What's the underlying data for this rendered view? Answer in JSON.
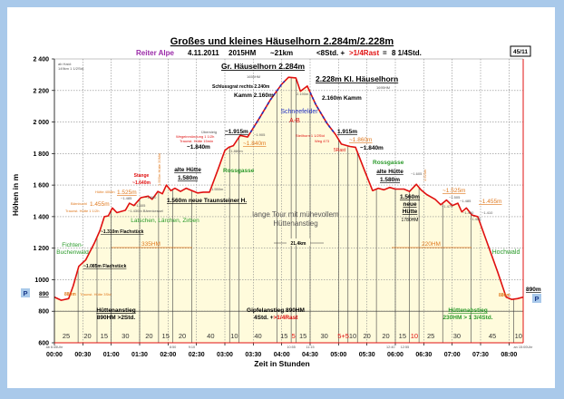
{
  "chart_data": {
    "type": "area",
    "title": "Großes und kleines Häuselhorn 2.284m/2.228m",
    "subtitle": {
      "region": "Reiter Alpe",
      "date": "4.11.2011",
      "hm": "2015HM",
      "distance": "~21km",
      "time": "<8Std. +",
      "rest": ">1/4Rast",
      "eq": "=",
      "total": "8 1/4Std."
    },
    "badge": "45/11",
    "xlabel": "Zeit in Stunden",
    "ylabel": "Höhen in m",
    "xlim": [
      0,
      8.25
    ],
    "ylim": [
      600,
      2400
    ],
    "yticks": [
      600,
      800,
      1000,
      1200,
      1400,
      1600,
      1800,
      2000,
      2200,
      2400
    ],
    "ytick_labels": [
      "600",
      "800",
      "1000",
      "1 200",
      "1 400",
      "1 600",
      "1 800",
      "2 000",
      "2 200",
      "2 400"
    ],
    "xtick_labels": [
      "00:00",
      "00:30",
      "01:00",
      "01:30",
      "02:00",
      "02:30",
      "03:00",
      "03:30",
      "04:00",
      "04:30",
      "05:00",
      "05:30",
      "06:00",
      "06:30",
      "07:00",
      "07:30",
      "08:00"
    ],
    "grid": true,
    "profile": [
      [
        0,
        890
      ],
      [
        0.12,
        870
      ],
      [
        0.25,
        880
      ],
      [
        0.33,
        960
      ],
      [
        0.43,
        1085
      ],
      [
        0.55,
        1125
      ],
      [
        0.7,
        1230
      ],
      [
        0.8,
        1310
      ],
      [
        0.88,
        1400
      ],
      [
        0.95,
        1405
      ],
      [
        1.02,
        1455
      ],
      [
        1.1,
        1425
      ],
      [
        1.25,
        1440
      ],
      [
        1.32,
        1485
      ],
      [
        1.4,
        1470
      ],
      [
        1.52,
        1520
      ],
      [
        1.65,
        1530
      ],
      [
        1.72,
        1510
      ],
      [
        1.82,
        1560
      ],
      [
        1.9,
        1545
      ],
      [
        1.97,
        1600
      ],
      [
        2.05,
        1565
      ],
      [
        2.12,
        1580
      ],
      [
        2.22,
        1560
      ],
      [
        2.32,
        1580
      ],
      [
        2.42,
        1565
      ],
      [
        2.52,
        1550
      ],
      [
        2.62,
        1555
      ],
      [
        2.73,
        1555
      ],
      [
        2.88,
        1700
      ],
      [
        3.0,
        1820
      ],
      [
        3.07,
        1840
      ],
      [
        3.15,
        1850
      ],
      [
        3.27,
        1915
      ],
      [
        3.4,
        1905
      ],
      [
        3.6,
        2020
      ],
      [
        3.8,
        2140
      ],
      [
        4.0,
        2240
      ],
      [
        4.12,
        2284
      ],
      [
        4.25,
        2280
      ],
      [
        4.33,
        2195
      ],
      [
        4.45,
        2228
      ],
      [
        4.6,
        2110
      ],
      [
        4.8,
        1990
      ],
      [
        4.95,
        1920
      ],
      [
        5.05,
        1860
      ],
      [
        5.2,
        1845
      ],
      [
        5.3,
        1840
      ],
      [
        5.45,
        1700
      ],
      [
        5.6,
        1565
      ],
      [
        5.7,
        1580
      ],
      [
        5.8,
        1570
      ],
      [
        5.9,
        1585
      ],
      [
        6.0,
        1575
      ],
      [
        6.15,
        1575
      ],
      [
        6.25,
        1560
      ],
      [
        6.37,
        1605
      ],
      [
        6.45,
        1570
      ],
      [
        6.55,
        1540
      ],
      [
        6.7,
        1510
      ],
      [
        6.8,
        1475
      ],
      [
        6.9,
        1505
      ],
      [
        7.0,
        1470
      ],
      [
        7.1,
        1485
      ],
      [
        7.17,
        1430
      ],
      [
        7.25,
        1455
      ],
      [
        7.35,
        1410
      ],
      [
        7.45,
        1400
      ],
      [
        7.6,
        1250
      ],
      [
        7.8,
        1050
      ],
      [
        7.95,
        890
      ],
      [
        8.05,
        875
      ],
      [
        8.15,
        880
      ],
      [
        8.25,
        890
      ]
    ],
    "blue_dashed_ranges": [
      [
        3.45,
        4.05
      ],
      [
        4.5,
        4.92
      ]
    ],
    "segments": [
      {
        "min": 25,
        "label": "25",
        "color": "#333"
      },
      {
        "min": 20,
        "label": "20",
        "color": "#333"
      },
      {
        "min": 15,
        "label": "15",
        "color": "#333"
      },
      {
        "min": 30,
        "label": "30",
        "color": "#333"
      },
      {
        "min": 20,
        "label": "20",
        "color": "#333"
      },
      {
        "min": 15,
        "label": "15",
        "color": "#333"
      },
      {
        "min": 20,
        "label": "20",
        "color": "#333"
      },
      {
        "min": 40,
        "label": "40",
        "color": "#333"
      },
      {
        "min": 10,
        "label": "10",
        "color": "#333"
      },
      {
        "min": 40,
        "label": "40",
        "color": "#333"
      },
      {
        "min": 15,
        "label": "15",
        "color": "#333"
      },
      {
        "min": 5,
        "label": "5",
        "color": "#e01010"
      },
      {
        "min": 15,
        "label": "15",
        "color": "#333"
      },
      {
        "min": 30,
        "label": "30",
        "color": "#333"
      },
      {
        "min": 10,
        "label": "5+5",
        "color": "#e01010"
      },
      {
        "min": 10,
        "label": "10",
        "color": "#333"
      },
      {
        "min": 20,
        "label": "20",
        "color": "#333"
      },
      {
        "min": 20,
        "label": "20",
        "color": "#333"
      },
      {
        "min": 15,
        "label": "15",
        "color": "#333"
      },
      {
        "min": 10,
        "label": "10",
        "color": "#e01010"
      },
      {
        "min": 25,
        "label": "25",
        "color": "#333"
      },
      {
        "min": 30,
        "label": "30",
        "color": "#333"
      },
      {
        "min": 45,
        "label": "45",
        "color": "#333"
      },
      {
        "min": 10,
        "label": "10",
        "color": "#333"
      }
    ],
    "clock_marks": [
      {
        "t": 0,
        "label": "ab 6:45Uhr"
      },
      {
        "t": 2.083,
        "label": "8:50"
      },
      {
        "t": 2.417,
        "label": "9:10"
      },
      {
        "t": 4.167,
        "label": "10:55"
      },
      {
        "t": 4.5,
        "label": "11:15"
      },
      {
        "t": 5.917,
        "label": "12:40"
      },
      {
        "t": 6.167,
        "label": "12:55"
      },
      {
        "t": 8.25,
        "label": "an 15:00Uhr"
      }
    ],
    "colors": {
      "line": "#e01010",
      "fill": "#fffbdc",
      "dash": "#2030c0",
      "grid": "#888"
    },
    "annotations": {
      "start_info1": "ab Haid:",
      "start_info2": "149km 1 1/2Std.",
      "peak": "Gr. Häuselhorn  2.284m",
      "peak_hm": "1655HM",
      "grat": "Schlussgrat rechts 2.240m",
      "kl_peak": "2.228m Kl. Häuselhorn",
      "kl_hm": "1695HM",
      "kamm_l": "Kamm 2.160m",
      "kamm_r": "2.160m Kamm",
      "saddle": "2.190m",
      "snow": "Schneefelder",
      "ab": "A-B",
      "uebersteig": "Übersteig",
      "u1915": "~1.915m",
      "weg1": "Wegeinmündung 1 1/2h",
      "weg2": "Traunst. Hütte 15min",
      "l1840": "~1.840m",
      "o1840": "~1.840m",
      "v1905": "~1.905",
      "v1880": "~1.880m",
      "rossgasse_l": "Rossgasse",
      "alte_l": "alte Hütte",
      "alte_l_h": "1.580m",
      "neue_l": "1.560m neue Traunsteiner H.",
      "v1550": "1.550m",
      "stange": "Stange",
      "stange_h": "~1.640m",
      "v1555": "1.555m  Hütte 20Min",
      "o1525": "1.525m",
      "huette40": "Hütte 40Min",
      "o1455": "1.455m",
      "baern": "Bärnbuchl",
      "traun12": "Traunst. Hütte 1 1/2h",
      "v1485": "~1.485",
      "v1405": "~1.405",
      "v1500": "~1.500",
      "v1430": "~1.430m Bärenkessel",
      "flach1310": "~1.310m Flachstück",
      "latschen": "Latschen, Lärchen, Zirben",
      "hm335": "335HM",
      "fichten1": "Fichten-",
      "fichten2": "Buchenwald",
      "flach1085": "~1.085m Flachstück",
      "p": "P",
      "start890": "890",
      "o880": "880m",
      "traun3": "Traunst. Hütte 3Std",
      "lang1": "lange Tour mit mühevollem",
      "lang2": "Hüttenanstieg",
      "km": "21,4km",
      "ha1": "Hüttenanstieg",
      "ha2": "890HM  >2Std.",
      "ga1": "Gipfelanstieg  890HM",
      "ga2": "4Std. +",
      "ga3": ">1/4Rast",
      "hab1": "Hüttenabstieg",
      "hab2": "230HM > 1  3/4Std.",
      "rossgasse_r": "Rossgasse",
      "alte_r": "alte Hütte",
      "alte_r_h": "1.580m",
      "r1915": "1.915m",
      "steil1": "Steilhorn 1 1/2Std",
      "steil2": "Weg 473",
      "o1860": "~1.860m",
      "r1840": "~1.840m",
      "rast5": "5Rast",
      "neue_h": "1.560m",
      "neue1": "neue",
      "neue2": "Hütte",
      "neue_hm": "1780HM",
      "v1605": "~1.605",
      "v1520": "1.520m",
      "o1525r": "~1.525m",
      "v1505": "~1.505",
      "v1485r": "~1.485",
      "v1475": "~1.475",
      "v1430r": "~1.430",
      "v1410": "~1.410",
      "v1400": "~1.400",
      "o1455r": "~1.455m",
      "hm220": "220HM",
      "hochwald": "Hochwald",
      "end890": "890m",
      "p2": "P",
      "o880r": "880m"
    }
  }
}
